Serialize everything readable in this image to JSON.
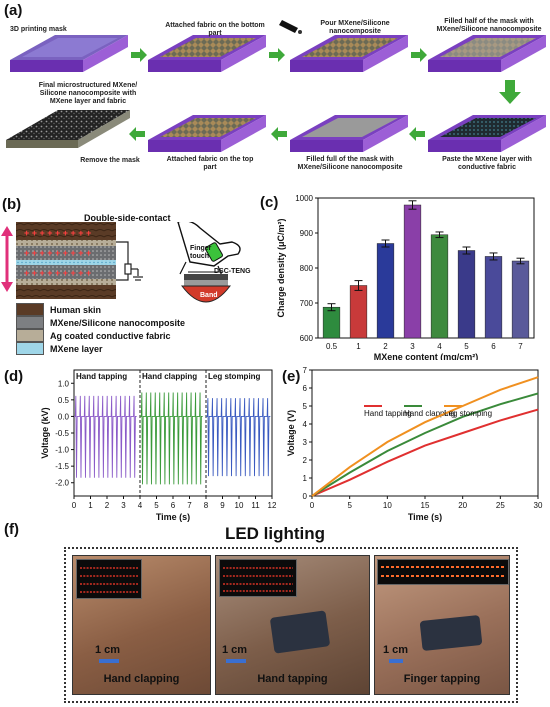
{
  "panel_labels": {
    "a": "(a)",
    "b": "(b)",
    "c": "(c)",
    "d": "(d)",
    "e": "(e)",
    "f": "(f)"
  },
  "panel_a": {
    "steps": [
      "3D printing mask",
      "Attached fabric on the bottom part",
      "Pour MXene/Silicone nanocomposite",
      "Filled half of the mask with MXene/Silicone nanocomposite",
      "Paste the MXene layer with conductive fabric",
      "Filled full of the mask with MXene/Silicone nanocomposite",
      "Attached fabric on the top part",
      "Remove the mask",
      "Final microstructured MXene/ Silicone nanocomposite with MXene layer and fabric"
    ],
    "colors": {
      "mask": "#8a3fc8",
      "arrow": "#3fa93a"
    }
  },
  "panel_b": {
    "title": "Double-side-contact",
    "legend": [
      {
        "label": "Human skin",
        "color": "#5a3b26"
      },
      {
        "label": "MXene/Silicone nanocomposite",
        "color": "#7d7f82"
      },
      {
        "label": "Ag coated conductive fabric",
        "color": "#b7ad98"
      },
      {
        "label": "MXene layer",
        "color": "#9fd6e8"
      }
    ],
    "device_labels": {
      "touch": "Finger touch",
      "teng": "DSC-TENG",
      "band": "Band"
    }
  },
  "chart_data": [
    {
      "type": "bar",
      "panel": "c",
      "categories": [
        "0.5",
        "1",
        "2",
        "3",
        "4",
        "5",
        "6",
        "7"
      ],
      "values": [
        688,
        750,
        870,
        980,
        895,
        850,
        833,
        820
      ],
      "errors": [
        10,
        14,
        10,
        12,
        8,
        10,
        10,
        8
      ],
      "colors": [
        "#2e8b3e",
        "#c83a3a",
        "#2a3a9a",
        "#8a3fa8",
        "#3e8a3e",
        "#3a3a8a",
        "#4a4a9a",
        "#5a5a9a"
      ],
      "xlabel": "MXene content (mg/cm²)",
      "ylabel": "Charge density (μC/m²)",
      "ylim": [
        600,
        1000
      ],
      "yticks": [
        600,
        700,
        800,
        900,
        1000
      ]
    },
    {
      "type": "line",
      "panel": "d",
      "xlabel": "Time (s)",
      "ylabel": "Voltage (kV)",
      "xlim": [
        0,
        12
      ],
      "ylim": [
        -2.4,
        1.4
      ],
      "xticks": [
        0,
        1,
        2,
        3,
        4,
        5,
        6,
        7,
        8,
        9,
        10,
        11,
        12
      ],
      "yticks": [
        -2.0,
        -1.5,
        -1.0,
        -0.5,
        0.0,
        0.5,
        1.0
      ],
      "ytick_labels": [
        "-2.0",
        "-1.5",
        "-1.0",
        "-0.5",
        "0.0",
        "0.5",
        "1.0"
      ],
      "series": [
        {
          "name": "Hand tapping",
          "x_range": [
            0,
            3.8
          ],
          "pulses": 14,
          "amp_pos": 0.62,
          "amp_neg": -1.85,
          "color": "#8a5ac8"
        },
        {
          "name": "Hand clapping",
          "x_range": [
            4,
            7.8
          ],
          "pulses": 14,
          "amp_pos": 0.72,
          "amp_neg": -2.05,
          "color": "#3a9a3a"
        },
        {
          "name": "Leg stomping",
          "x_range": [
            8,
            11.9
          ],
          "pulses": 14,
          "amp_pos": 0.55,
          "amp_neg": -1.8,
          "color": "#3a5ac0"
        }
      ]
    },
    {
      "type": "line",
      "panel": "e",
      "xlabel": "Time (s)",
      "ylabel": "Voltage (V)",
      "xlim": [
        0,
        30
      ],
      "ylim": [
        0,
        7
      ],
      "xticks": [
        0,
        5,
        10,
        15,
        20,
        25,
        30
      ],
      "yticks": [
        0,
        1,
        2,
        3,
        4,
        5,
        6,
        7
      ],
      "series": [
        {
          "name": "Hand tapping",
          "color": "#e03030",
          "x": [
            0,
            5,
            10,
            15,
            20,
            25,
            30
          ],
          "y": [
            0,
            0.9,
            1.9,
            2.8,
            3.5,
            4.2,
            4.8
          ]
        },
        {
          "name": "Hand clapping",
          "color": "#3a8a3a",
          "x": [
            0,
            5,
            10,
            15,
            20,
            25,
            30
          ],
          "y": [
            0,
            1.3,
            2.5,
            3.5,
            4.4,
            5.1,
            5.7
          ]
        },
        {
          "name": "Leg stomping",
          "color": "#f09020",
          "x": [
            0,
            5,
            10,
            15,
            20,
            25,
            30
          ],
          "y": [
            0,
            1.6,
            3.0,
            4.1,
            5.0,
            5.9,
            6.6
          ]
        }
      ]
    }
  ],
  "panel_f": {
    "title": "LED lighting",
    "photos": [
      {
        "caption": "Hand clapping",
        "scale": "1 cm"
      },
      {
        "caption": "Hand tapping",
        "scale": "1 cm"
      },
      {
        "caption": "Finger tapping",
        "scale": "1 cm"
      }
    ]
  }
}
